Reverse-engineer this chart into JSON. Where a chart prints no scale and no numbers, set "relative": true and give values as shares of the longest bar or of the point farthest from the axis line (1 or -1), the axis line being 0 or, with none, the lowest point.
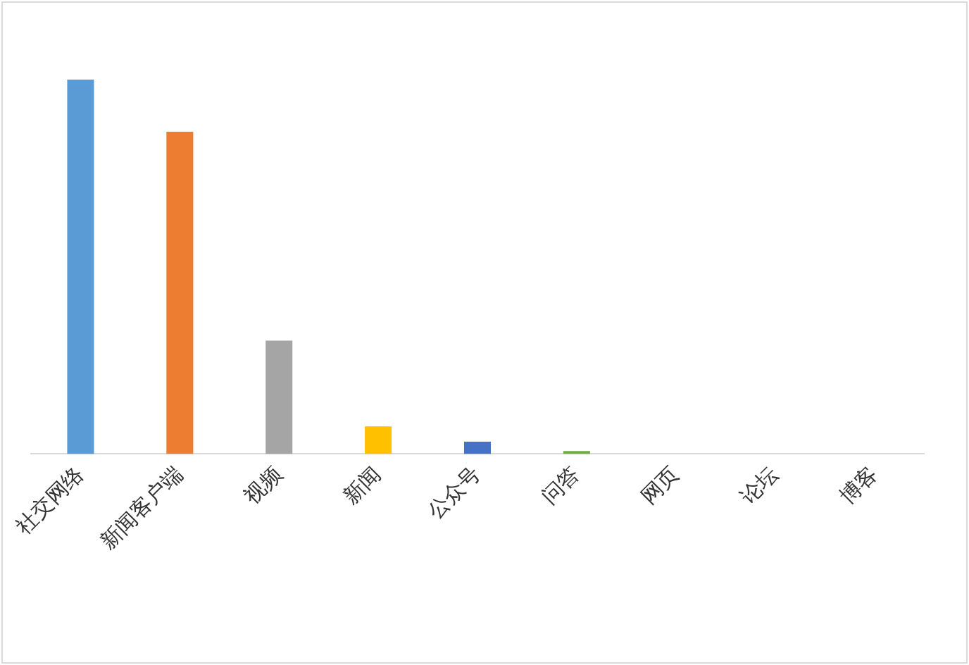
{
  "chart_data": {
    "type": "bar",
    "relative": true,
    "categories": [
      "社交网络",
      "新闻客户端",
      "视频",
      "新闻",
      "公众号",
      "问答",
      "网页",
      "论坛",
      "博客"
    ],
    "values": [
      1,
      0.861,
      0.303,
      0.074,
      0.033,
      0.008,
      0,
      0,
      0
    ],
    "colors": [
      "#5b9bd5",
      "#ed7d31",
      "#a5a5a5",
      "#ffc000",
      "#4472c4",
      "#70ad47",
      "#255e91",
      "#9e480e",
      "#636363"
    ],
    "legend": false
  }
}
